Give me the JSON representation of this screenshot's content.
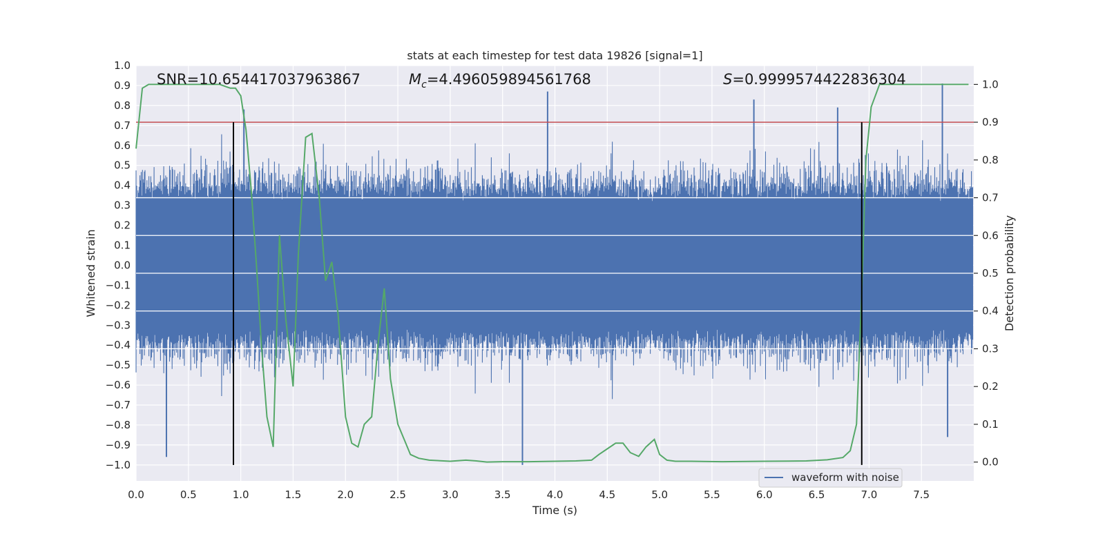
{
  "chart_data": {
    "type": "line",
    "title": "stats at each timestep for test data 19826 [signal=1]",
    "xlabel": "Time (s)",
    "ylabel": "Whitened strain",
    "y2label": "Detection probability",
    "xlim": [
      0.0,
      8.0
    ],
    "ylim": [
      -1.08,
      1.0
    ],
    "y2lim": [
      -0.05,
      1.05
    ],
    "x_ticks": [
      0.0,
      0.5,
      1.0,
      1.5,
      2.0,
      2.5,
      3.0,
      3.5,
      4.0,
      4.5,
      5.0,
      5.5,
      6.0,
      6.5,
      7.0,
      7.5
    ],
    "x_tick_labels": [
      "0.0",
      "0.5",
      "1.0",
      "1.5",
      "2.0",
      "2.5",
      "3.0",
      "3.5",
      "4.0",
      "4.5",
      "5.0",
      "5.5",
      "6.0",
      "6.5",
      "7.0",
      "7.5"
    ],
    "y_ticks": [
      1.0,
      0.9,
      0.8,
      0.7,
      0.6,
      0.5,
      0.4,
      0.3,
      0.2,
      0.1,
      0.0,
      -0.1,
      -0.2,
      -0.3,
      -0.4,
      -0.5,
      -0.6,
      -0.7,
      -0.8,
      -0.9,
      -1.0
    ],
    "y_tick_labels": [
      "1.0",
      "0.9",
      "0.8",
      "0.7",
      "0.6",
      "0.5",
      "0.4",
      "0.3",
      "0.2",
      "0.1",
      "0.0",
      "−0.1",
      "−0.2",
      "−0.3",
      "−0.4",
      "−0.5",
      "−0.6",
      "−0.7",
      "−0.8",
      "−0.9",
      "−1.0"
    ],
    "y2_ticks": [
      1.0,
      0.9,
      0.8,
      0.7,
      0.6,
      0.5,
      0.4,
      0.3,
      0.2,
      0.1,
      0.0
    ],
    "y2_tick_labels": [
      "1.0",
      "0.9",
      "0.8",
      "0.7",
      "0.6",
      "0.5",
      "0.4",
      "0.3",
      "0.2",
      "0.1",
      "0.0"
    ],
    "annotations": {
      "snr": "SNR=10.654417037963867",
      "mc_prefix": "M",
      "mc_sub": "c",
      "mc_value": "=4.496059894561768",
      "s_prefix": "S",
      "s_value": "=0.9999574422836304"
    },
    "legend": {
      "label": "waveform with noise",
      "placement": "lower-right"
    },
    "threshold_line": {
      "value": 0.9,
      "axis": "y2",
      "color": "#c44e52"
    },
    "event_markers": {
      "x": [
        0.93,
        6.93
      ],
      "y_from": -1.0,
      "y_to": 0.9,
      "color": "#000000"
    },
    "series": [
      {
        "name": "waveform with noise",
        "axis": "y",
        "color": "#4c72b0",
        "kind": "noise",
        "sample_rate_hz": 2048,
        "envelope_typical": 0.42,
        "notable_spikes": [
          {
            "x": 0.29,
            "y": -0.96
          },
          {
            "x": 1.03,
            "y": 0.78
          },
          {
            "x": 3.69,
            "y": -1.0
          },
          {
            "x": 3.93,
            "y": 0.87
          },
          {
            "x": 5.9,
            "y": 0.83
          },
          {
            "x": 6.7,
            "y": 0.79
          },
          {
            "x": 7.7,
            "y": 0.91
          },
          {
            "x": 7.75,
            "y": -0.86
          }
        ]
      },
      {
        "name": "detection probability",
        "axis": "y2",
        "color": "#55a868",
        "x": [
          0.0,
          0.06,
          0.12,
          0.2,
          0.4,
          0.6,
          0.8,
          0.9,
          0.95,
          1.0,
          1.05,
          1.1,
          1.15,
          1.2,
          1.25,
          1.31,
          1.37,
          1.43,
          1.5,
          1.55,
          1.62,
          1.68,
          1.75,
          1.81,
          1.87,
          1.93,
          2.0,
          2.06,
          2.12,
          2.18,
          2.25,
          2.31,
          2.37,
          2.43,
          2.5,
          2.56,
          2.62,
          2.7,
          2.8,
          3.0,
          3.15,
          3.25,
          3.35,
          3.5,
          3.75,
          4.0,
          4.2,
          4.35,
          4.42,
          4.5,
          4.58,
          4.65,
          4.72,
          4.8,
          4.87,
          4.95,
          5.0,
          5.07,
          5.15,
          5.3,
          5.6,
          6.0,
          6.4,
          6.6,
          6.75,
          6.82,
          6.88,
          6.93,
          6.97,
          7.02,
          7.1,
          7.5,
          7.7,
          7.95
        ],
        "y": [
          0.83,
          0.99,
          1.0,
          1.0,
          1.0,
          1.0,
          1.0,
          0.99,
          0.99,
          0.97,
          0.88,
          0.72,
          0.52,
          0.3,
          0.12,
          0.04,
          0.6,
          0.38,
          0.2,
          0.55,
          0.86,
          0.87,
          0.7,
          0.48,
          0.53,
          0.39,
          0.12,
          0.05,
          0.04,
          0.1,
          0.12,
          0.31,
          0.46,
          0.22,
          0.1,
          0.06,
          0.02,
          0.01,
          0.005,
          0.002,
          0.005,
          0.003,
          0.0,
          0.001,
          0.001,
          0.002,
          0.003,
          0.005,
          0.02,
          0.035,
          0.05,
          0.05,
          0.025,
          0.015,
          0.04,
          0.06,
          0.02,
          0.005,
          0.002,
          0.002,
          0.001,
          0.002,
          0.003,
          0.006,
          0.012,
          0.03,
          0.1,
          0.45,
          0.8,
          0.94,
          1.0,
          1.0,
          1.0,
          1.0
        ]
      }
    ]
  }
}
